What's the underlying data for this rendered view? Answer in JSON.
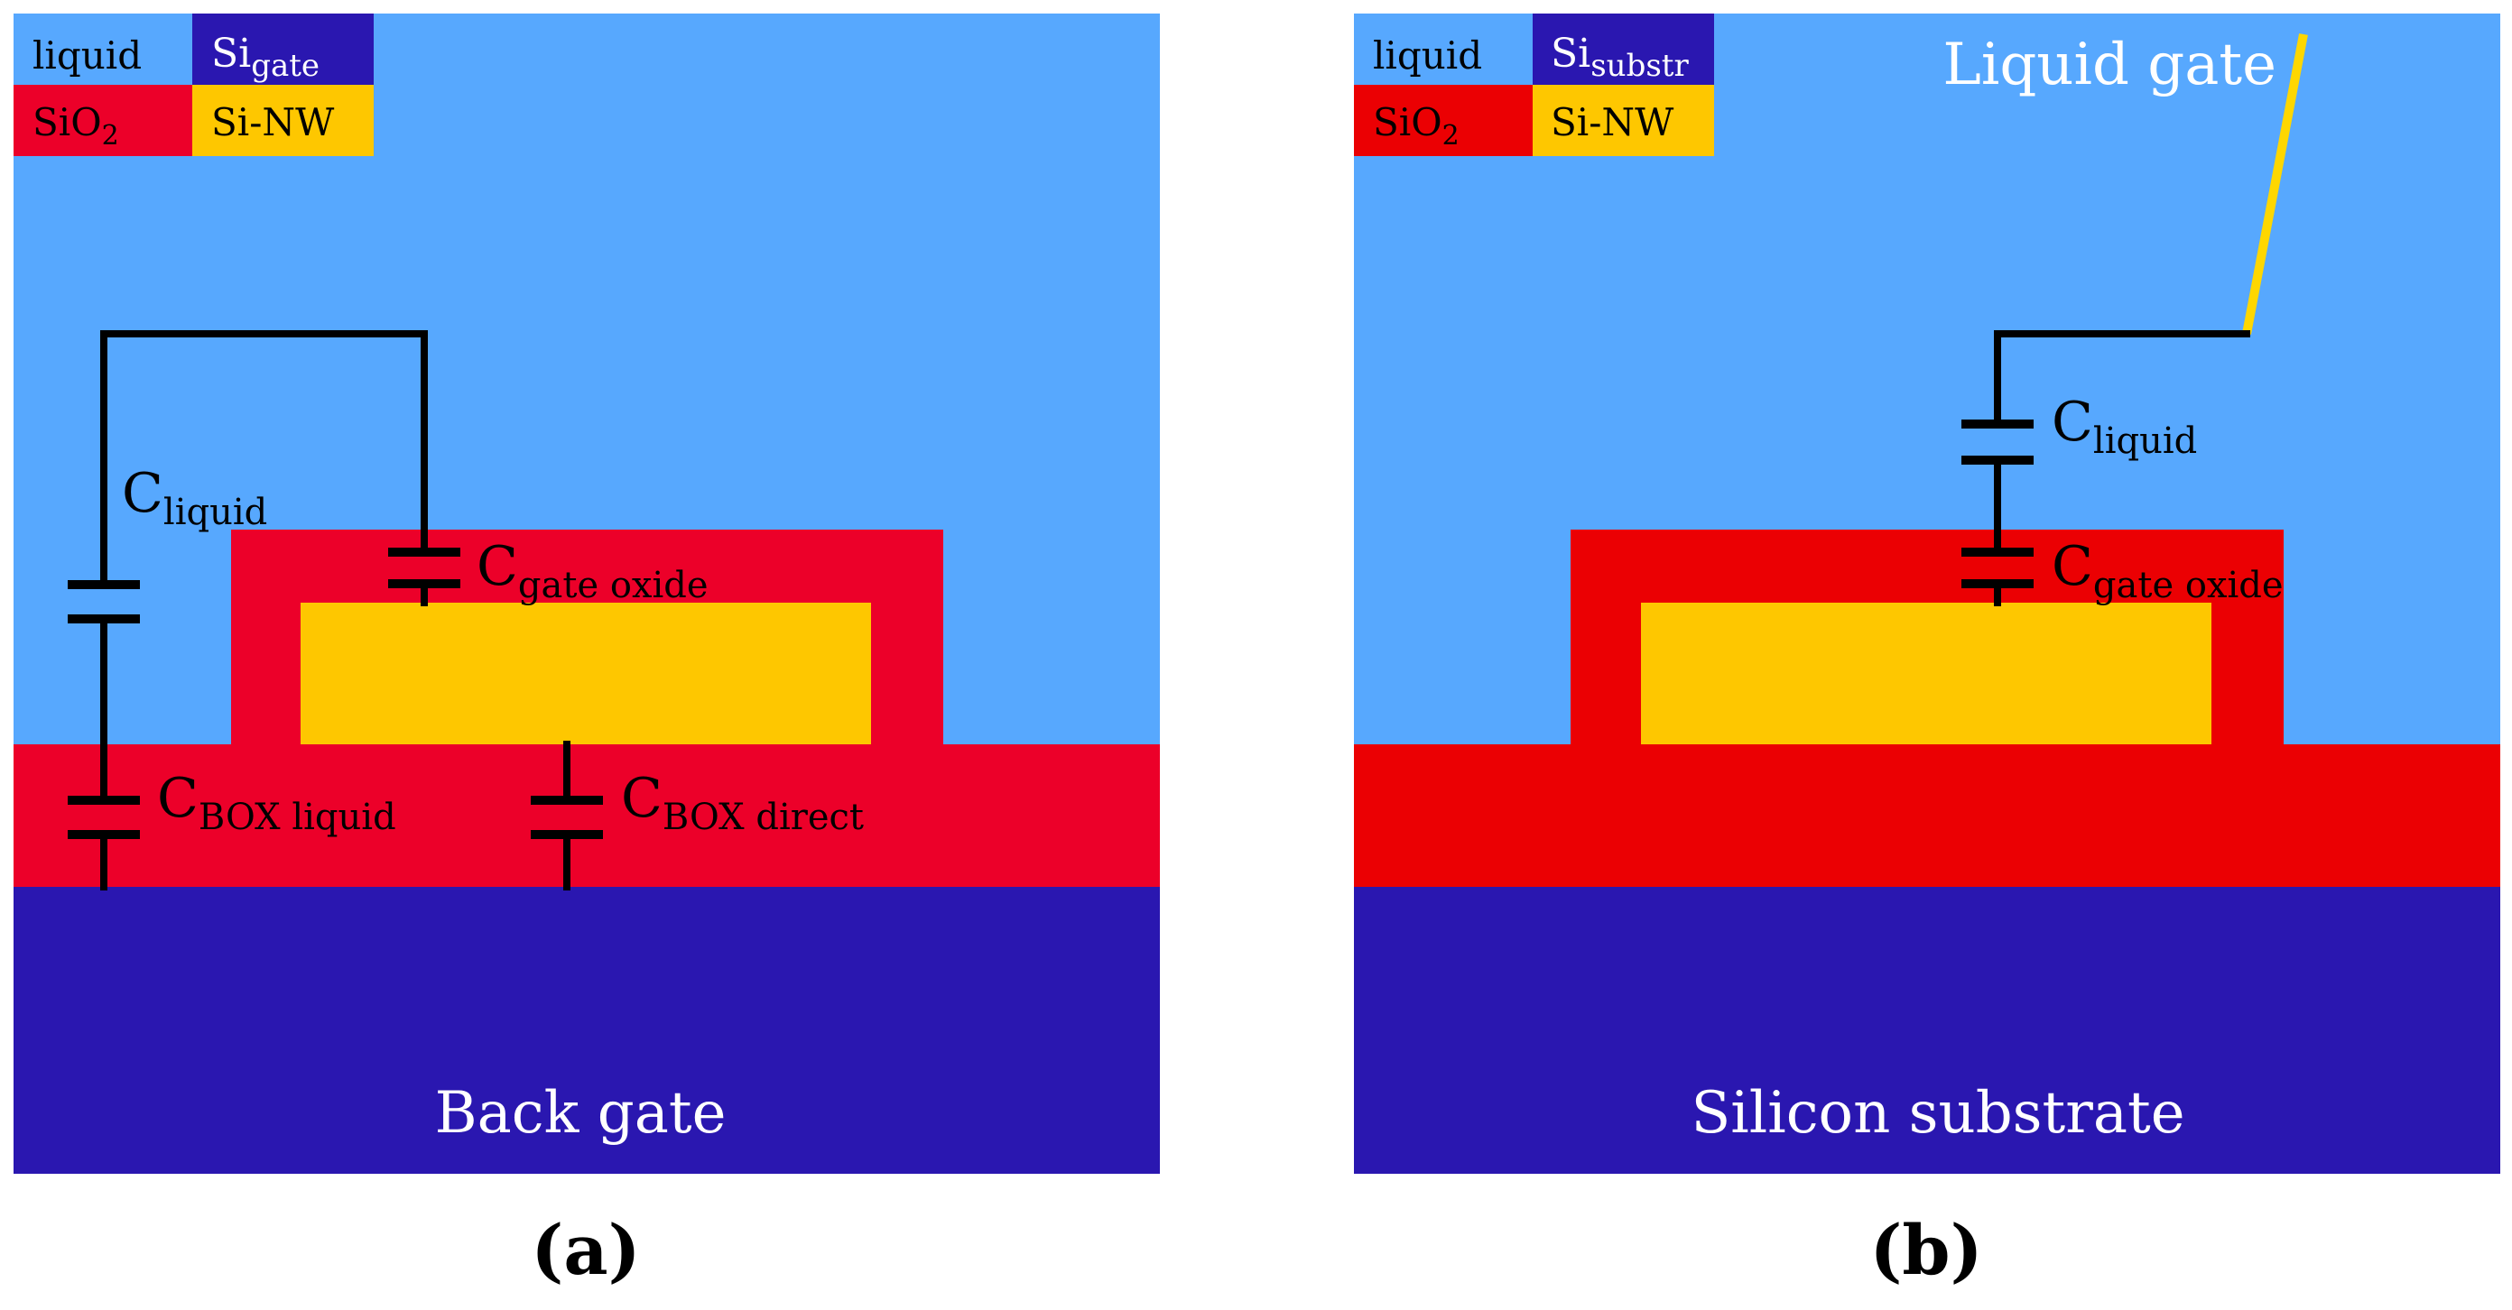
{
  "colors": {
    "liquid": "#57A8FE",
    "sio2_a": "#EC0029",
    "sio2_b": "#EB0003",
    "si_gate": "#2A17B0",
    "si_nw": "#FEC700",
    "wire": "#000000",
    "gate_wire": "#FED700"
  },
  "panel_a": {
    "legend": {
      "liquid": "liquid",
      "sigate_main": "Si",
      "sigate_sub": "gate",
      "sio2_main": "SiO",
      "sio2_sub": "2",
      "sinw": "Si-NW"
    },
    "labels": {
      "c_liquid_main": "C",
      "c_liquid_sub": "liquid",
      "c_gate_oxide_main": "C",
      "c_gate_oxide_sub": "gate oxide",
      "c_box_liquid_main": "C",
      "c_box_liquid_sub": "BOX liquid",
      "c_box_direct_main": "C",
      "c_box_direct_sub": "BOX direct",
      "substrate": "Back gate"
    },
    "caption": "(a)"
  },
  "panel_b": {
    "legend": {
      "liquid": "liquid",
      "sisubstr_main": "Si",
      "sisubstr_sub": "substr",
      "sio2_main": "SiO",
      "sio2_sub": "2",
      "sinw": "Si-NW"
    },
    "labels": {
      "liquid_gate": "Liquid gate",
      "c_liquid_main": "C",
      "c_liquid_sub": "liquid",
      "c_gate_oxide_main": "C",
      "c_gate_oxide_sub": "gate oxide",
      "substrate": "Silicon substrate"
    },
    "caption": "(b)"
  }
}
